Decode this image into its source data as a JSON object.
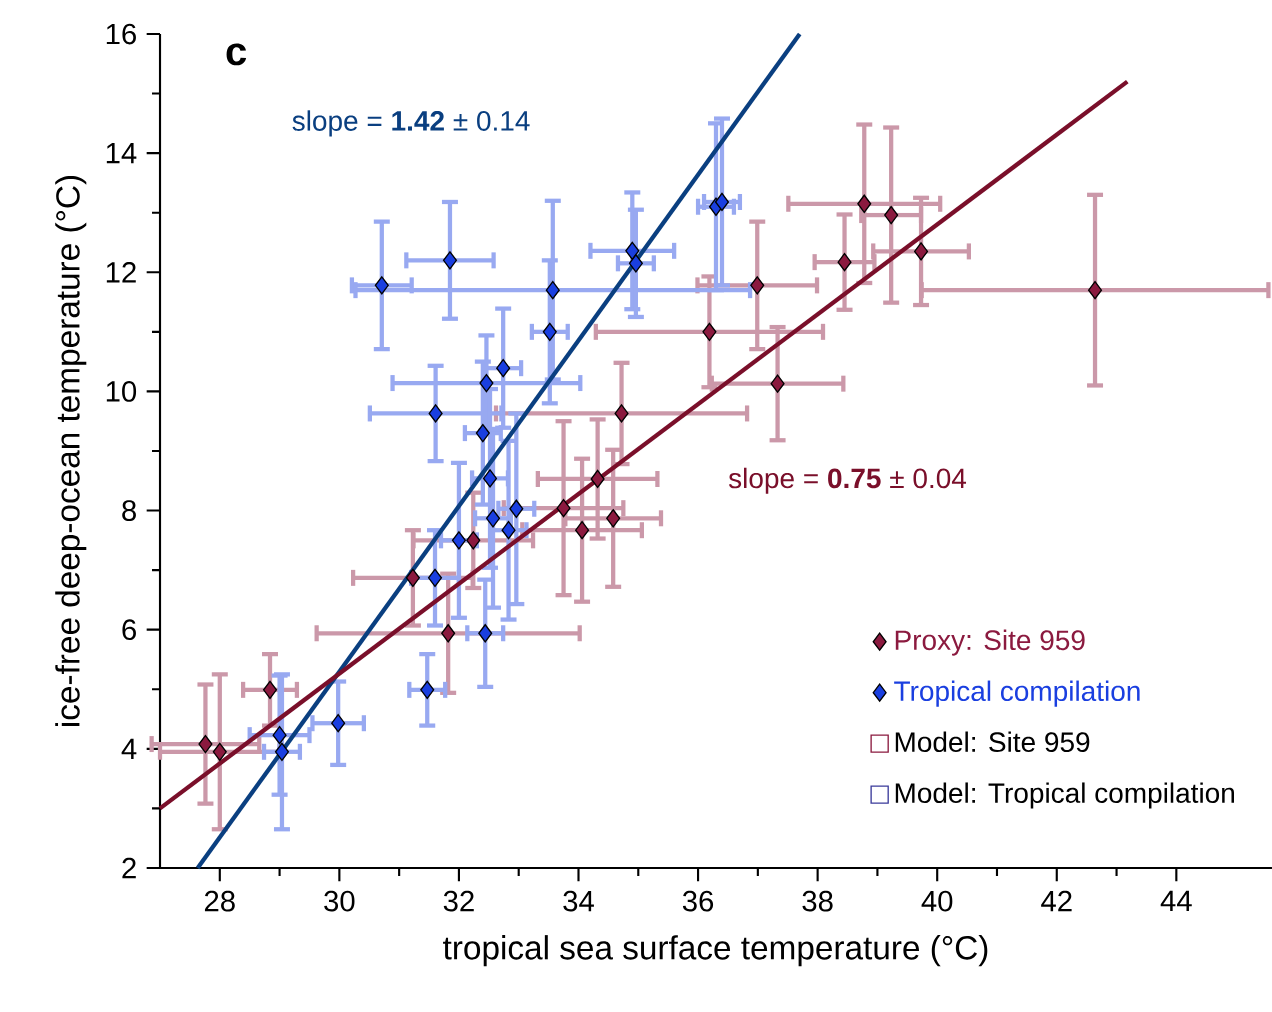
{
  "chart_data": {
    "type": "scatter",
    "xlabel": "tropical sea surface temperature (°C)",
    "ylabel": "ice-free deep-ocean temperature (°C)",
    "xlim": [
      27,
      45.6
    ],
    "ylim": [
      2,
      16
    ],
    "xticks": [
      28,
      30,
      32,
      34,
      36,
      38,
      40,
      42,
      44
    ],
    "yticks": [
      2,
      4,
      6,
      8,
      10,
      12,
      14,
      16
    ],
    "legend": "bottom right",
    "grid": false,
    "annotations": [
      "c",
      "slope = **1.42** ± 0.14",
      "slope = **0.75** ± 0.04"
    ],
    "series": [
      {
        "name": "Proxy: Site 959",
        "color": "#8b1a3f",
        "marker": "diamond",
        "x": [
          27.76,
          28.0,
          28.84,
          31.82,
          31.23,
          32.24,
          33.75,
          34.06,
          34.32,
          34.58,
          34.72,
          36.19,
          37.33,
          36.99,
          38.45,
          38.78,
          39.23,
          39.73,
          42.64
        ],
        "values": [
          4.08,
          3.95,
          4.99,
          5.94,
          6.87,
          7.5,
          8.04,
          7.67,
          8.53,
          7.87,
          9.63,
          11.0,
          10.13,
          11.78,
          12.17,
          13.15,
          12.96,
          12.35,
          11.7
        ],
        "xerrors": [
          0.9,
          1.0,
          0.45,
          2.2,
          1.0,
          1.0,
          1.0,
          1.0,
          1.0,
          0.8,
          2.1,
          1.9,
          1.1,
          1.0,
          0.5,
          1.27,
          0.5,
          0.8,
          2.9
        ],
        "errors": [
          1.0,
          1.3,
          0.6,
          1.0,
          0.8,
          0.8,
          1.46,
          1.2,
          1.0,
          1.15,
          0.85,
          0.93,
          0.95,
          1.07,
          0.8,
          1.33,
          1.47,
          0.9,
          1.6
        ]
      },
      {
        "name": "Tropical compilation",
        "color": "#1a3fe0",
        "marker": "diamond",
        "x": [
          30.71,
          31.85,
          33.57,
          33.52,
          32.74,
          32.46,
          31.61,
          32.4,
          32.52,
          34.9,
          34.96,
          36.3,
          36.4,
          32.57,
          32.96,
          32.83,
          32.0,
          31.6,
          32.44,
          31.47,
          29.98,
          29.0,
          29.04
        ],
        "values": [
          11.78,
          12.2,
          11.7,
          11.0,
          10.39,
          10.14,
          9.63,
          9.3,
          8.54,
          12.36,
          12.15,
          13.1,
          13.18,
          7.87,
          8.03,
          7.67,
          7.5,
          6.87,
          5.94,
          4.99,
          4.43,
          4.23,
          3.95
        ],
        "xerrors": [
          0.5,
          0.73,
          3.3,
          0.3,
          0.3,
          1.57,
          1.1,
          0.3,
          0.3,
          0.7,
          0.3,
          0.3,
          0.3,
          0.3,
          0.3,
          0.3,
          0.3,
          0.4,
          0.3,
          0.3,
          0.43,
          0.5,
          0.3
        ],
        "errors": [
          1.07,
          0.98,
          1.5,
          1.2,
          1.0,
          0.8,
          0.8,
          1.2,
          1.5,
          0.98,
          0.9,
          1.4,
          1.4,
          1.5,
          1.6,
          1.5,
          1.3,
          0.8,
          0.9,
          0.6,
          0.7,
          1.0,
          1.3
        ]
      },
      {
        "name": "Model: Site 959",
        "color": "#8b1a3f",
        "marker": "square"
      },
      {
        "name": "Model: Tropical compilation",
        "color": "#3a3a9a",
        "marker": "square"
      },
      {
        "type": "line",
        "color": "#0a3f80",
        "x": [
          27.63,
          37.7
        ],
        "values": [
          2,
          16
        ]
      },
      {
        "type": "line",
        "color": "#7a0f2a",
        "x": [
          27,
          43.18
        ],
        "values": [
          3.0,
          15.2
        ]
      }
    ]
  }
}
